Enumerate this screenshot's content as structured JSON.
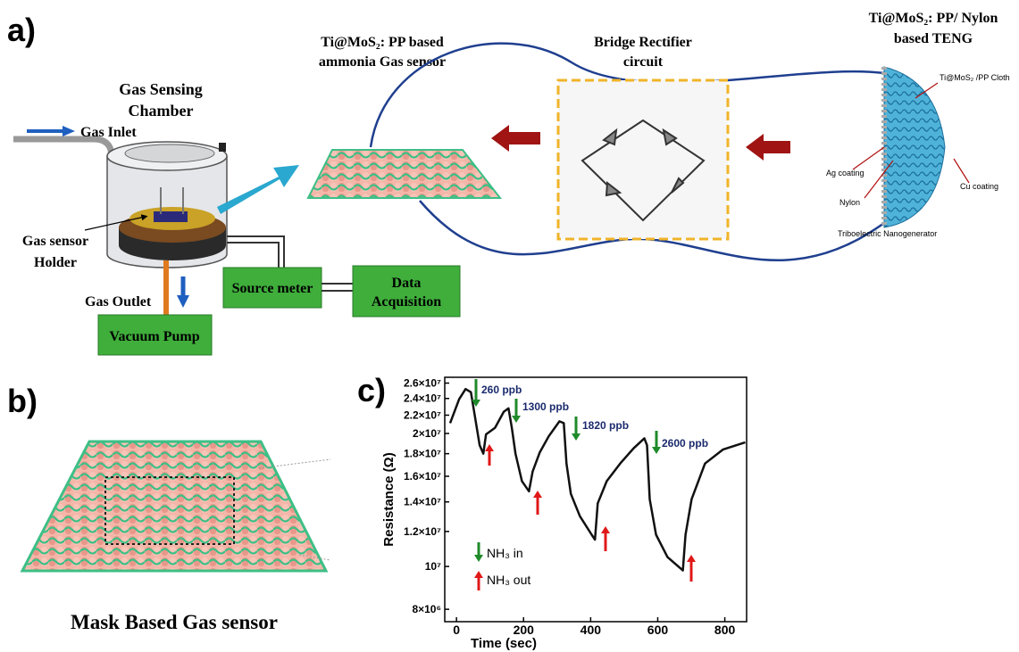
{
  "panel_a": {
    "label": "a)",
    "chamber_title": [
      "Gas Sensing",
      "Chamber"
    ],
    "gas_inlet": "Gas Inlet",
    "sensor_holder": [
      "Gas sensor",
      "Holder"
    ],
    "gas_outlet": "Gas Outlet",
    "vacuum_pump": "Vacuum Pump",
    "source_meter": "Source meter",
    "data_acquisition": [
      "Data",
      "Acquisition"
    ],
    "sensor_title": [
      "Ti@MoS₂: PP based",
      "ammonia Gas sensor"
    ],
    "rectifier_title": [
      "Bridge Rectifier",
      "circuit"
    ],
    "teng_title": [
      "Ti@MoS₂: PP/ Nylon",
      "based TENG"
    ],
    "teng_labels": [
      "Ti@MoS₂ /PP Cloth",
      "Ag coating",
      "Nylon",
      "Cu coating",
      "Triboelectric Nanogenerator"
    ]
  },
  "panel_b": {
    "label": "b)",
    "caption": "Mask Based Gas sensor"
  },
  "chart_data": {
    "type": "line",
    "label": "c)",
    "xlabel": "Time (sec)",
    "ylabel": "Resistance (Ω)",
    "log_y": true,
    "xlim": [
      -35,
      865
    ],
    "ylim": [
      7500000,
      26800000
    ],
    "xticks": [
      0,
      200,
      400,
      600,
      800
    ],
    "yticks": [
      {
        "value": 8000000,
        "label": "8×10⁶"
      },
      {
        "value": 10000000,
        "label": "10⁷"
      },
      {
        "value": 12000000,
        "label": "1.2×10⁷"
      },
      {
        "value": 14000000,
        "label": "1.4×10⁷"
      },
      {
        "value": 16000000,
        "label": "1.6×10⁷"
      },
      {
        "value": 18000000,
        "label": "1.8×10⁷"
      },
      {
        "value": 20000000,
        "label": "2×10⁷"
      },
      {
        "value": 22000000,
        "label": "2.2×10⁷"
      },
      {
        "value": 24000000,
        "label": "2.4×10⁷"
      },
      {
        "value": 26000000,
        "label": "2.6×10⁷"
      }
    ],
    "x": [
      -19,
      8,
      27,
      43,
      56,
      69,
      80,
      88,
      115,
      141,
      155,
      165,
      176,
      195,
      216,
      227,
      248,
      275,
      307,
      320,
      328,
      341,
      368,
      403,
      413,
      421,
      448,
      488,
      528,
      560,
      568,
      576,
      595,
      629,
      675,
      683,
      701,
      741,
      795,
      861
    ],
    "series": [
      {
        "color": "#111111",
        "values": [
          21100000,
          23900000,
          25200000,
          24800000,
          21600000,
          18800000,
          18000000,
          19900000,
          20600000,
          22400000,
          22800000,
          20600000,
          18000000,
          15600000,
          14800000,
          16400000,
          18100000,
          19700000,
          21300000,
          21100000,
          17100000,
          14600000,
          13000000,
          11800000,
          11500000,
          13900000,
          15600000,
          17100000,
          18500000,
          19500000,
          18800000,
          14200000,
          11800000,
          10500000,
          9800000,
          11800000,
          14200000,
          17100000,
          18400000,
          19100000
        ]
      }
    ],
    "annotations": [
      "260 ppb",
      "1300 ppb",
      "1820 ppb",
      "2600 ppb"
    ],
    "legend_texts": [
      "NH₃ in",
      "NH₃ out"
    ]
  }
}
